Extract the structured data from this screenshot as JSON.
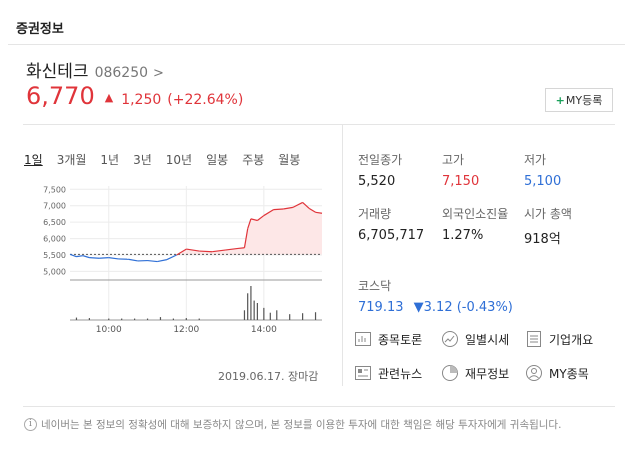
{
  "section": {
    "title": "증권정보"
  },
  "stock": {
    "name": "화신테크",
    "code": "086250",
    "chevron": ">",
    "price": "6,770",
    "direction_symbol": "▲",
    "change": "1,250",
    "change_pct": "(+22.64%)",
    "my_button": "MY등록",
    "my_plus": "+"
  },
  "periods": [
    "1일",
    "3개월",
    "1년",
    "3년",
    "10년",
    "일봉",
    "주봉",
    "월봉"
  ],
  "active_period": "1일",
  "chart_data": {
    "type": "line",
    "y_ticks": [
      "7,500",
      "7,000",
      "6,500",
      "6,000",
      "5,500",
      "5,000"
    ],
    "ylim": [
      4800,
      7600
    ],
    "x_ticks": [
      "10:00",
      "12:00",
      "14:00"
    ],
    "prev_close": 5520,
    "time_range": [
      "09:00",
      "15:30"
    ],
    "price_series": {
      "x": [
        "09:00",
        "09:10",
        "09:20",
        "09:30",
        "09:45",
        "10:00",
        "10:15",
        "10:30",
        "10:45",
        "11:00",
        "11:15",
        "11:30",
        "11:45",
        "12:00",
        "12:20",
        "12:40",
        "13:00",
        "13:20",
        "13:30",
        "13:35",
        "13:40",
        "13:50",
        "14:00",
        "14:15",
        "14:30",
        "14:45",
        "15:00",
        "15:10",
        "15:20",
        "15:30"
      ],
      "y": [
        5520,
        5450,
        5480,
        5420,
        5400,
        5420,
        5380,
        5370,
        5320,
        5330,
        5300,
        5360,
        5500,
        5680,
        5620,
        5600,
        5650,
        5700,
        5720,
        6300,
        6600,
        6550,
        6700,
        6880,
        6900,
        6950,
        7100,
        6920,
        6800,
        6770
      ]
    },
    "volume_series": {
      "x": [
        "09:10",
        "09:30",
        "10:00",
        "10:20",
        "10:40",
        "11:00",
        "11:20",
        "11:40",
        "12:00",
        "12:20",
        "13:30",
        "13:35",
        "13:40",
        "13:45",
        "13:50",
        "14:00",
        "14:10",
        "14:20",
        "14:40",
        "15:00",
        "15:20"
      ],
      "y": [
        5,
        4,
        3,
        3,
        3,
        3,
        6,
        3,
        4,
        3,
        20,
        55,
        70,
        40,
        35,
        25,
        15,
        20,
        12,
        14,
        16
      ]
    },
    "grid": true,
    "date_label": "2019.06.17. 장마감"
  },
  "info": {
    "prev_close_label": "전일종가",
    "prev_close": "5,520",
    "high_label": "고가",
    "high": "7,150",
    "low_label": "저가",
    "low": "5,100",
    "volume_label": "거래량",
    "volume": "6,705,717",
    "foreign_label": "외국인소진율",
    "foreign": "1.27%",
    "mcap_label": "시가 총액",
    "mcap": "918억"
  },
  "index": {
    "name": "코스닥",
    "value": "719.13",
    "arrow": "▼",
    "change": "3.12",
    "change_pct": "(-0.43%)"
  },
  "links": {
    "discussion": "종목토론",
    "daily_price": "일별시세",
    "company": "기업개요",
    "news": "관련뉴스",
    "financial": "재무정보",
    "my_stocks": "MY종목"
  },
  "colors": {
    "up": "#e0343a",
    "down": "#2f6fd6",
    "fill": "#fde7e7"
  },
  "disclaimer": "네이버는 본 정보의 정확성에 대해 보증하지 않으며, 본 정보를 이용한 투자에 대한 책임은 해당 투자자에게 귀속됩니다."
}
